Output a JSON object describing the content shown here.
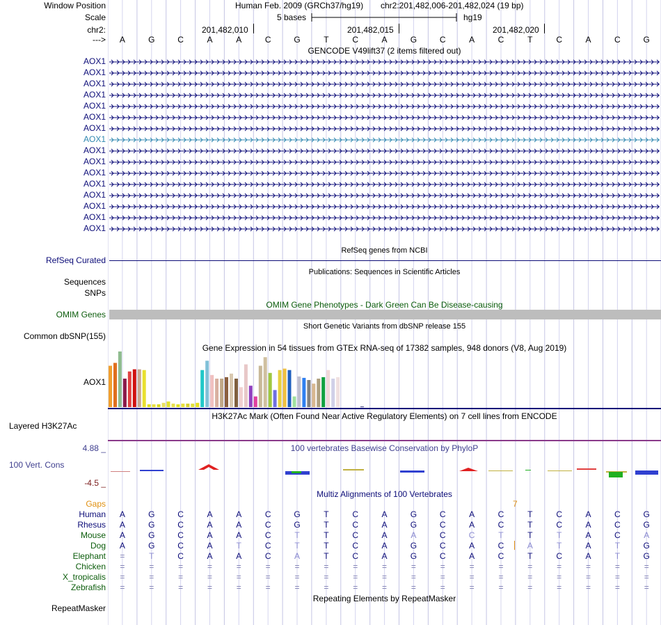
{
  "header": {
    "window_position_label": "Window Position",
    "scale_label": "Scale",
    "chr_label": "chr2:",
    "strand_label": "--->",
    "assembly_text": "Human Feb. 2009 (GRCh37/hg19)",
    "position_text": "chr2:201,482,006-201,482,024 (19 bp)",
    "scale_text": "5 bases",
    "db_text": "hg19",
    "coords": [
      "201,482,010",
      "201,482,015",
      "201,482,020"
    ]
  },
  "sequence": [
    "A",
    "G",
    "C",
    "A",
    "A",
    "C",
    "G",
    "T",
    "C",
    "A",
    "G",
    "C",
    "A",
    "C",
    "T",
    "C",
    "A",
    "C",
    "G"
  ],
  "gencode": {
    "title": "GENCODE V49lift37 (2 items filtered out)",
    "gene_label": "AOX1",
    "row_count": 16,
    "highlight_row": 7
  },
  "refseq": {
    "title": "RefSeq genes from NCBI",
    "label": "RefSeq Curated"
  },
  "publications": {
    "title": "Publications: Sequences in Scientific Articles",
    "labels": [
      "Sequences",
      "SNPs"
    ]
  },
  "omim": {
    "title": "OMIM Gene Phenotypes - Dark Green Can Be Disease-causing",
    "label": "OMIM Genes"
  },
  "dbsnp": {
    "title": "Short Genetic Variants from dbSNP release 155",
    "label": "Common dbSNP(155)"
  },
  "gtex": {
    "title": "Gene Expression in 54 tissues from GTEx RNA-seq of 17382 samples, 948 donors (V8, Aug 2019)",
    "label": "AOX1"
  },
  "chart_data": {
    "type": "bar",
    "title": "Gene Expression in 54 tissues from GTEx RNA-seq of 17382 samples, 948 donors (V8, Aug 2019)",
    "ylim": [
      0,
      78
    ],
    "values": [
      58,
      62,
      78,
      40,
      50,
      53,
      53,
      52,
      4,
      4,
      4,
      6,
      8,
      5,
      4,
      5,
      5,
      5,
      6,
      52,
      65,
      45,
      40,
      40,
      42,
      47,
      40,
      28,
      60,
      30,
      15,
      58,
      70,
      48,
      24,
      52,
      54,
      52,
      15,
      43,
      41,
      38,
      33,
      40,
      42,
      52,
      40,
      42,
      0,
      0,
      0,
      0,
      1,
      0
    ],
    "colors": [
      "#f0a030",
      "#e07020",
      "#8fbc8f",
      "#8b1a4a",
      "#e04040",
      "#d01010",
      "#c8a890",
      "#e8e030",
      "#e0e020",
      "#e8e040",
      "#d8d820",
      "#e8e060",
      "#e0e030",
      "#e8e050",
      "#e0e020",
      "#e8e040",
      "#d8d030",
      "#e0e040",
      "#e8e020",
      "#20c8c8",
      "#80c0d8",
      "#f0c0c0",
      "#d8b0a0",
      "#c0a888",
      "#8b6040",
      "#d8c8b0",
      "#806040",
      "#f0d0d0",
      "#e8c8c8",
      "#9040c0",
      "#e040a0",
      "#c8b898",
      "#d0c0a0",
      "#a0c840",
      "#7070e0",
      "#e8d040",
      "#f0c040",
      "#2060c0",
      "#a0e0a0",
      "#c0c0d0",
      "#3080f0",
      "#808080",
      "#d8b890",
      "#b0a080",
      "#10a040",
      "#f0d8d8",
      "#d0d0e8",
      "#f0e0e0",
      "#ffffff",
      "#ffffff",
      "#ffffff",
      "#ffffff",
      "#404080",
      "#ffffff"
    ]
  },
  "h3k27ac": {
    "title": "H3K27Ac Mark (Often Found Near Active Regulatory Elements) on 7 cell lines from ENCODE",
    "label": "Layered H3K27Ac"
  },
  "phylop": {
    "title": "100 vertebrates Basewise Conservation by PhyloP",
    "label": "100 Vert. Cons",
    "max_label": "4.88 _",
    "min_label": "-4.5 _"
  },
  "multiz": {
    "title": "Multiz Alignments of 100 Vertebrates",
    "gaps_label": "Gaps",
    "gap_count": "7",
    "species": [
      {
        "name": "Human",
        "seq": [
          "A",
          "G",
          "C",
          "A",
          "A",
          "C",
          "G",
          "T",
          "C",
          "A",
          "G",
          "C",
          "A",
          "C",
          "T",
          "C",
          "A",
          "C",
          "G"
        ]
      },
      {
        "name": "Rhesus",
        "seq": [
          "A",
          "G",
          "C",
          "A",
          "A",
          "C",
          "G",
          "T",
          "C",
          "A",
          "G",
          "C",
          "A",
          "C",
          "T",
          "C",
          "A",
          "C",
          "G"
        ]
      },
      {
        "name": "Mouse",
        "seq": [
          "A",
          "G",
          "C",
          "A",
          "A",
          "C",
          "T",
          "T",
          "C",
          "A",
          "A",
          "C",
          "C",
          "T",
          "T",
          "T",
          "A",
          "C",
          "A"
        ]
      },
      {
        "name": "Dog",
        "seq": [
          "A",
          "G",
          "C",
          "A",
          "T",
          "C",
          "T",
          "T",
          "C",
          "A",
          "G",
          "C",
          "A",
          "C",
          "A",
          "T",
          "A",
          "T",
          "G"
        ]
      },
      {
        "name": "Elephant",
        "seq": [
          "=",
          "T",
          "C",
          "A",
          "A",
          "C",
          "A",
          "T",
          "C",
          "A",
          "G",
          "C",
          "A",
          "C",
          "T",
          "C",
          "A",
          "T",
          "G"
        ]
      },
      {
        "name": "Chicken",
        "seq": [
          "=",
          "=",
          "=",
          "=",
          "=",
          "=",
          "=",
          "=",
          "=",
          "=",
          "=",
          "=",
          "=",
          "=",
          "=",
          "=",
          "=",
          "=",
          "="
        ]
      },
      {
        "name": "X_tropicalis",
        "seq": [
          "=",
          "=",
          "=",
          "=",
          "=",
          "=",
          "=",
          "=",
          "=",
          "=",
          "=",
          "=",
          "=",
          "=",
          "=",
          "=",
          "=",
          "=",
          "="
        ]
      },
      {
        "name": "Zebrafish",
        "seq": [
          "=",
          "=",
          "=",
          "=",
          "=",
          "=",
          "=",
          "=",
          "=",
          "=",
          "=",
          "=",
          "=",
          "=",
          "=",
          "=",
          "=",
          "=",
          "="
        ]
      }
    ]
  },
  "repeatmasker": {
    "title": "Repeating Elements by RepeatMasker",
    "label": "RepeatMasker"
  },
  "colors": {
    "gene": "#0c0c78",
    "highlight_gene": "#3088b0",
    "omim_green": "#0b5c0b",
    "multiz_label": "#0b5c0b",
    "phylop_label": "#3f3f8f",
    "gaps_orange": "#e09010",
    "max_red": "#7a1a1a"
  }
}
